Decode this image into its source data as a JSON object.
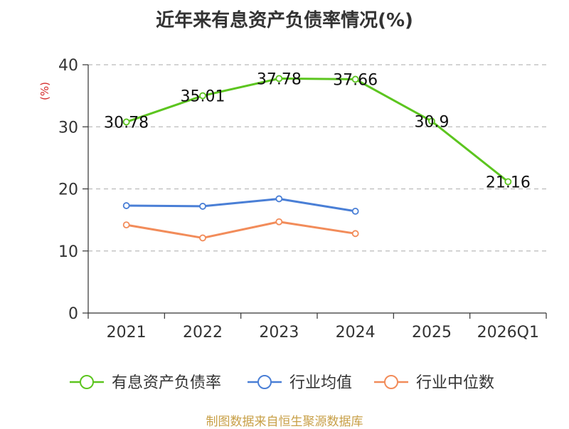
{
  "chart_data": {
    "type": "line",
    "title": "近年来有息资产负债率情况(%)",
    "ylabel": "(%)",
    "ylim": [
      0,
      40
    ],
    "yticks": [
      0,
      10,
      20,
      30,
      40
    ],
    "ytick_labels": [
      "0",
      "10",
      "20",
      "30",
      "40"
    ],
    "categories": [
      "2021",
      "2022",
      "2023",
      "2024",
      "2025",
      "2026Q1"
    ],
    "grid": true,
    "legend_position": "bottom",
    "series": [
      {
        "name": "有息资产负债率",
        "color": "#5cc51f",
        "values": [
          30.78,
          35.01,
          37.78,
          37.66,
          30.9,
          21.16
        ],
        "labels": [
          "30.78",
          "35.01",
          "37.78",
          "37.66",
          "30.9",
          "21.16"
        ]
      },
      {
        "name": "行业均值",
        "color": "#4a7fd6",
        "values": [
          17.3,
          17.2,
          18.4,
          16.4,
          null,
          null
        ]
      },
      {
        "name": "行业中位数",
        "color": "#f28c5a",
        "values": [
          14.2,
          12.1,
          14.7,
          12.8,
          null,
          null
        ]
      }
    ]
  },
  "footer": {
    "source": "制图数据来自恒生聚源数据库"
  }
}
